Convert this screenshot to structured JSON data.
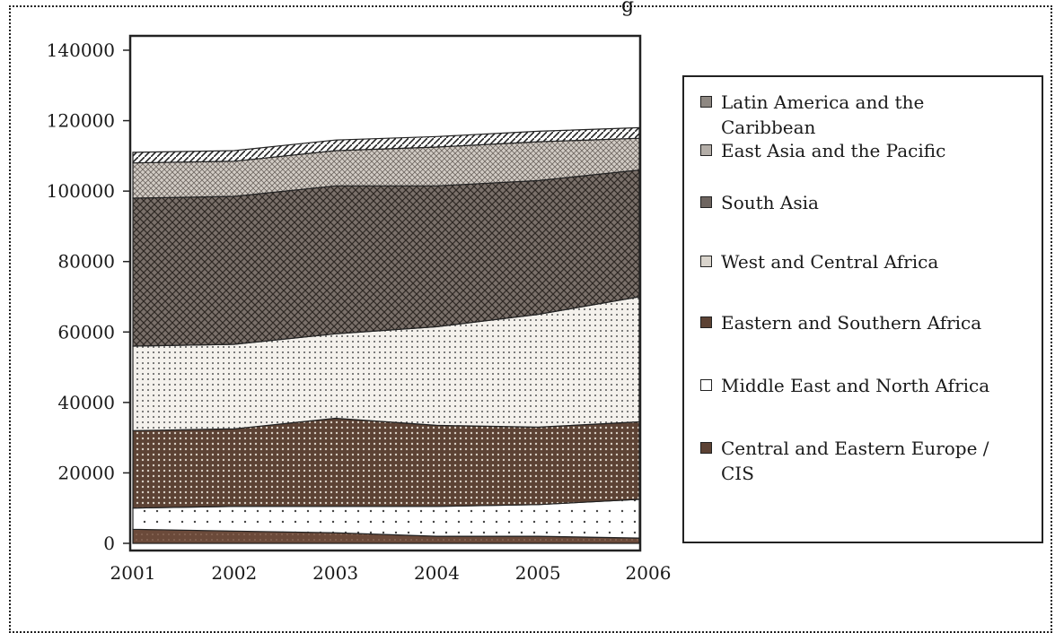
{
  "title_fragment": "g",
  "chart_data": {
    "type": "area",
    "stacked": true,
    "x": [
      2001,
      2002,
      2003,
      2004,
      2005,
      2006
    ],
    "ylim": [
      0,
      140000
    ],
    "yticks": [
      0,
      20000,
      40000,
      60000,
      80000,
      100000,
      120000,
      140000
    ],
    "xlabel": "",
    "ylabel": "",
    "legend_position": "right",
    "series": [
      {
        "name": "Central and Eastern Europe / CIS",
        "values": [
          4000,
          3500,
          3000,
          2000,
          2000,
          1500
        ],
        "color": "#6b4a3a"
      },
      {
        "name": "Middle East and North Africa",
        "values": [
          6000,
          7000,
          7500,
          8500,
          9000,
          11000
        ],
        "color": "#f2eee8"
      },
      {
        "name": "Eastern and Southern Africa",
        "values": [
          22000,
          22000,
          25000,
          23000,
          22000,
          22000
        ],
        "color": "#5c4234"
      },
      {
        "name": "West and Central Africa",
        "values": [
          24000,
          24000,
          24000,
          28000,
          32000,
          35500
        ],
        "color": "#d9d4cc"
      },
      {
        "name": "South Asia",
        "values": [
          42000,
          42000,
          42000,
          40000,
          38000,
          36000
        ],
        "color": "#6e6560"
      },
      {
        "name": "East Asia and the Pacific",
        "values": [
          10000,
          10000,
          10000,
          11000,
          11000,
          9000
        ],
        "color": "#b4aea8"
      },
      {
        "name": "Latin America and the Caribbean",
        "values": [
          3000,
          3000,
          3000,
          3000,
          3000,
          3000
        ],
        "color": "#8e8882"
      }
    ],
    "legend_order": [
      "Latin America and the\nCaribbean",
      "East Asia and the Pacific",
      "South Asia",
      "West and Central Africa",
      "Eastern and Southern Africa",
      "Middle East and North Africa",
      "Central and Eastern Europe /\nCIS"
    ],
    "legend_colors": [
      "#8e8882",
      "#b4aea8",
      "#6e6560",
      "#d9d4cc",
      "#5c4234",
      "#ffffff",
      "#5c4234"
    ]
  }
}
